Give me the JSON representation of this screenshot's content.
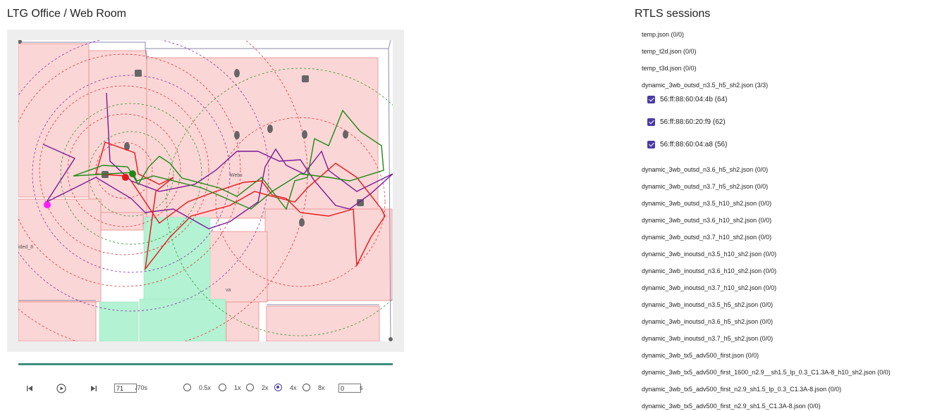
{
  "header": {
    "map_title": "LTG Office / Web Room",
    "sessions_title": "RTLS sessions"
  },
  "map": {
    "room_labels": {
      "web": "Webs",
      "left": "ided_8",
      "small": "va"
    },
    "colors": {
      "room_fill": "#fbd6d6",
      "room_stroke": "#e88a8a",
      "green_room": "#b3f2d2",
      "track_red": "#e8161a",
      "track_green": "#1c8a16",
      "track_purple": "#7a1a9a",
      "marker_magenta": "#ff1aff",
      "anchor": "#666666"
    }
  },
  "playback": {
    "prev_icon": "skip-previous-icon",
    "play_icon": "play-circle-icon",
    "next_icon": "skip-next-icon",
    "current_time": "71",
    "duration": "/70s",
    "speeds": [
      "0.5x",
      "1x",
      "2x",
      "4x",
      "8x"
    ],
    "selected_speed": "4x",
    "offset_value": "0",
    "offset_unit": "s"
  },
  "sessions": [
    "temp.json (0/0)",
    "temp_t2d.json (0/0)",
    "temp_t3d.json (0/0)",
    "dynamic_3wb_outsd_n3.5_h5_sh2.json (3/3)",
    "dynamic_3wb_outsd_n3.6_h5_sh2.json (0/0)",
    "dynamic_3wb_outsd_n3.7_h5_sh2.json (0/0)",
    "dynamic_3wb_outsd_n3.5_h10_sh2.json (0/0)",
    "dynamic_3wb_outsd_n3.6_h10_sh2.json (0/0)",
    "dynamic_3wb_outsd_n3.7_h10_sh2.json (0/0)",
    "dynamic_3wb_inoutsd_n3.5_h10_sh2.json (0/0)",
    "dynamic_3wb_inoutsd_n3.6_h10_sh2.json (0/0)",
    "dynamic_3wb_inoutsd_n3.7_h10_sh2.json (0/0)",
    "dynamic_3wb_inoutsd_n3.5_h5_sh2.json (0/0)",
    "dynamic_3wb_inoutsd_n3.6_h5_sh2.json (0/0)",
    "dynamic_3wb_inoutsd_n3.7_h5_sh2.json (0/0)",
    "dynamic_3wb_tx5_adv500_first.json (0/0)",
    "dynamic_3wb_tx5_adv500_first_1600_n2.9__sh1.5_lp_0.3_C1.3A-8_h10_sh2.json (0/0)",
    "dynamic_3wb_tx5_adv500_first_n2.9_sh1.5_lp_0.3_C1.3A-8.json (0/0)",
    "dynamic_3wb_tx5_adv500_first_n2.9_sh1.5_C1.3A-8.json (0/0)"
  ],
  "devices": [
    {
      "label": "56:ff:88:60:04:4b (64)",
      "checked": true
    },
    {
      "label": "56:ff:88:60:20:f9 (62)",
      "checked": true
    },
    {
      "label": "56:ff:88:60:04:a8 (56)",
      "checked": true
    }
  ]
}
